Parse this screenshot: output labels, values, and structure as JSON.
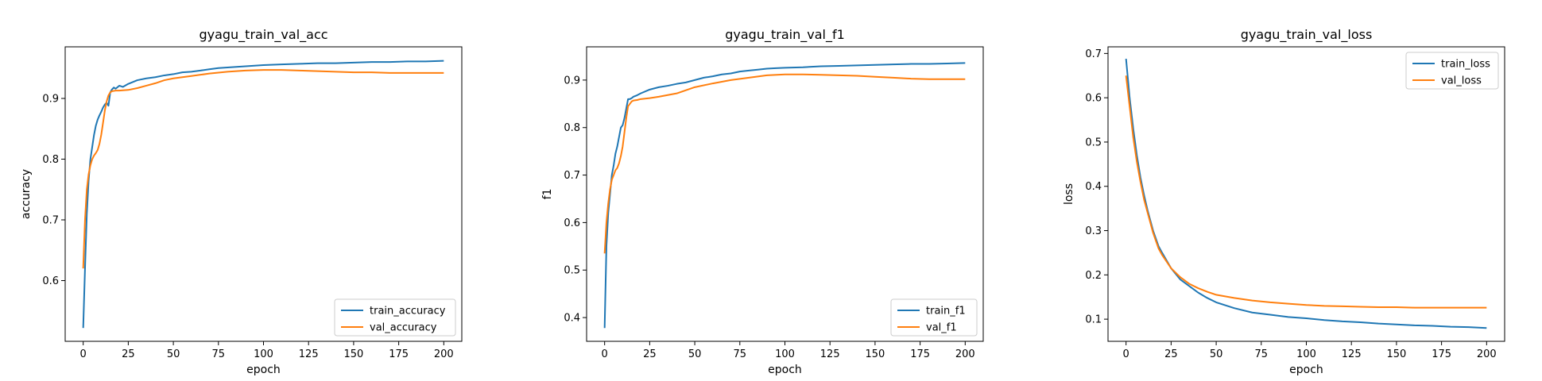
{
  "chart_data": [
    {
      "type": "line",
      "title": "gyagu_train_val_acc",
      "xlabel": "epoch",
      "ylabel": "accuracy",
      "xlim": [
        -10,
        210
      ],
      "ylim": [
        0.5,
        0.985
      ],
      "x_ticks": [
        0,
        25,
        50,
        75,
        100,
        125,
        150,
        175,
        200
      ],
      "y_ticks": [
        0.6,
        0.7,
        0.8,
        0.9
      ],
      "legend_position": "lower-right",
      "series": [
        {
          "name": "train_accuracy",
          "color": "#1f77b4",
          "x": [
            0,
            1,
            2,
            3,
            4,
            5,
            6,
            7,
            8,
            9,
            10,
            11,
            12,
            13,
            14,
            15,
            16,
            17,
            18,
            20,
            22,
            25,
            30,
            35,
            40,
            45,
            50,
            55,
            60,
            65,
            70,
            75,
            80,
            85,
            90,
            95,
            100,
            110,
            120,
            130,
            140,
            150,
            160,
            170,
            180,
            190,
            200
          ],
          "y": [
            0.522,
            0.62,
            0.71,
            0.765,
            0.8,
            0.82,
            0.84,
            0.855,
            0.865,
            0.872,
            0.878,
            0.885,
            0.89,
            0.893,
            0.888,
            0.91,
            0.915,
            0.918,
            0.916,
            0.921,
            0.919,
            0.924,
            0.93,
            0.933,
            0.935,
            0.938,
            0.94,
            0.943,
            0.944,
            0.946,
            0.948,
            0.95,
            0.951,
            0.952,
            0.953,
            0.954,
            0.955,
            0.956,
            0.957,
            0.958,
            0.958,
            0.959,
            0.96,
            0.96,
            0.961,
            0.961,
            0.962
          ]
        },
        {
          "name": "val_accuracy",
          "color": "#ff7f0e",
          "x": [
            0,
            1,
            2,
            3,
            4,
            5,
            6,
            7,
            8,
            9,
            10,
            11,
            12,
            13,
            14,
            15,
            16,
            18,
            20,
            25,
            30,
            35,
            40,
            45,
            50,
            60,
            70,
            80,
            90,
            100,
            110,
            120,
            130,
            140,
            150,
            160,
            170,
            180,
            190,
            200
          ],
          "y": [
            0.62,
            0.7,
            0.75,
            0.775,
            0.79,
            0.8,
            0.806,
            0.81,
            0.815,
            0.825,
            0.84,
            0.86,
            0.88,
            0.895,
            0.905,
            0.91,
            0.912,
            0.913,
            0.913,
            0.914,
            0.917,
            0.921,
            0.925,
            0.93,
            0.933,
            0.937,
            0.941,
            0.944,
            0.946,
            0.947,
            0.947,
            0.946,
            0.945,
            0.944,
            0.943,
            0.943,
            0.942,
            0.942,
            0.942,
            0.942
          ]
        }
      ]
    },
    {
      "type": "line",
      "title": "gyagu_train_val_f1",
      "xlabel": "epoch",
      "ylabel": "f1",
      "xlim": [
        -10,
        210
      ],
      "ylim": [
        0.35,
        0.97
      ],
      "x_ticks": [
        0,
        25,
        50,
        75,
        100,
        125,
        150,
        175,
        200
      ],
      "y_ticks": [
        0.4,
        0.5,
        0.6,
        0.7,
        0.8,
        0.9
      ],
      "legend_position": "lower-right",
      "series": [
        {
          "name": "train_f1",
          "color": "#1f77b4",
          "x": [
            0,
            1,
            2,
            3,
            4,
            5,
            6,
            7,
            8,
            9,
            10,
            11,
            12,
            13,
            14,
            15,
            16,
            18,
            20,
            25,
            30,
            35,
            40,
            45,
            50,
            55,
            60,
            65,
            70,
            75,
            80,
            85,
            90,
            95,
            100,
            110,
            120,
            130,
            140,
            150,
            160,
            170,
            180,
            190,
            200
          ],
          "y": [
            0.378,
            0.55,
            0.62,
            0.66,
            0.7,
            0.72,
            0.745,
            0.76,
            0.78,
            0.8,
            0.805,
            0.82,
            0.84,
            0.86,
            0.86,
            0.862,
            0.865,
            0.868,
            0.872,
            0.88,
            0.885,
            0.888,
            0.892,
            0.895,
            0.9,
            0.905,
            0.908,
            0.912,
            0.914,
            0.918,
            0.92,
            0.922,
            0.924,
            0.925,
            0.926,
            0.927,
            0.929,
            0.93,
            0.931,
            0.932,
            0.933,
            0.934,
            0.934,
            0.935,
            0.936
          ]
        },
        {
          "name": "val_f1",
          "color": "#ff7f0e",
          "x": [
            0,
            1,
            2,
            3,
            4,
            5,
            6,
            7,
            8,
            9,
            10,
            11,
            12,
            13,
            14,
            15,
            16,
            18,
            20,
            25,
            30,
            40,
            50,
            60,
            70,
            80,
            90,
            100,
            110,
            120,
            130,
            140,
            150,
            160,
            170,
            180,
            190,
            200
          ],
          "y": [
            0.535,
            0.6,
            0.64,
            0.67,
            0.69,
            0.7,
            0.71,
            0.715,
            0.725,
            0.74,
            0.76,
            0.79,
            0.82,
            0.845,
            0.85,
            0.855,
            0.857,
            0.858,
            0.86,
            0.862,
            0.865,
            0.872,
            0.885,
            0.893,
            0.9,
            0.905,
            0.91,
            0.912,
            0.912,
            0.911,
            0.91,
            0.909,
            0.907,
            0.905,
            0.903,
            0.902,
            0.902,
            0.902
          ]
        }
      ]
    },
    {
      "type": "line",
      "title": "gyagu_train_val_loss",
      "xlabel": "epoch",
      "ylabel": "loss",
      "xlim": [
        -10,
        210
      ],
      "ylim": [
        0.05,
        0.715
      ],
      "x_ticks": [
        0,
        25,
        50,
        75,
        100,
        125,
        150,
        175,
        200
      ],
      "y_ticks": [
        0.1,
        0.2,
        0.3,
        0.4,
        0.5,
        0.6,
        0.7
      ],
      "legend_position": "upper-right",
      "series": [
        {
          "name": "train_loss",
          "color": "#1f77b4",
          "x": [
            0,
            2,
            4,
            6,
            8,
            10,
            12,
            15,
            18,
            20,
            25,
            30,
            35,
            40,
            45,
            50,
            60,
            70,
            80,
            90,
            100,
            110,
            120,
            130,
            140,
            150,
            160,
            170,
            180,
            190,
            200
          ],
          "y": [
            0.688,
            0.6,
            0.53,
            0.47,
            0.42,
            0.38,
            0.345,
            0.3,
            0.265,
            0.25,
            0.215,
            0.19,
            0.175,
            0.16,
            0.148,
            0.138,
            0.125,
            0.115,
            0.11,
            0.105,
            0.102,
            0.098,
            0.095,
            0.093,
            0.09,
            0.088,
            0.086,
            0.085,
            0.083,
            0.082,
            0.08
          ]
        },
        {
          "name": "val_loss",
          "color": "#ff7f0e",
          "x": [
            0,
            2,
            4,
            6,
            8,
            10,
            12,
            15,
            18,
            20,
            25,
            30,
            35,
            40,
            45,
            50,
            60,
            70,
            80,
            90,
            100,
            110,
            120,
            130,
            140,
            150,
            160,
            170,
            180,
            190,
            200
          ],
          "y": [
            0.65,
            0.58,
            0.51,
            0.455,
            0.41,
            0.37,
            0.34,
            0.295,
            0.26,
            0.245,
            0.215,
            0.195,
            0.18,
            0.17,
            0.162,
            0.155,
            0.148,
            0.142,
            0.138,
            0.135,
            0.132,
            0.13,
            0.129,
            0.128,
            0.127,
            0.127,
            0.126,
            0.126,
            0.126,
            0.126,
            0.126
          ]
        }
      ]
    }
  ]
}
